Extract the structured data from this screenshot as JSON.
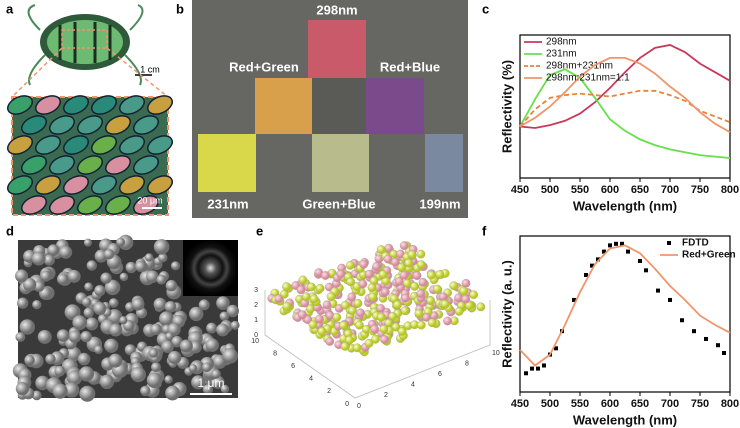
{
  "panel_labels": [
    "a",
    "b",
    "c",
    "d",
    "e",
    "f"
  ],
  "panel_a": {
    "scale_top": "1 cm",
    "scale_bottom": "20 μm"
  },
  "panel_b": {
    "labels": [
      "298nm",
      "Red+Green",
      "Red+Blue",
      "231nm",
      "Green+Blue",
      "199nm"
    ]
  },
  "panel_d": {
    "scale": "1 μm"
  },
  "panel_e": {
    "z_ticks": [
      0,
      1,
      2,
      3
    ],
    "y_ticks": [
      10,
      8,
      6,
      4,
      2,
      0
    ],
    "x_ticks": [
      0,
      2,
      4,
      6,
      8,
      10
    ]
  },
  "chart_data": [
    {
      "type": "line",
      "xlabel": "Wavelength (nm)",
      "ylabel": "Reflectivity (%)",
      "xlim": [
        450,
        800
      ],
      "xticks": [
        450,
        500,
        550,
        600,
        650,
        700,
        750,
        800
      ],
      "ylim": [
        0,
        100
      ],
      "series": [
        {
          "name": "298nm",
          "color": "#c8385a",
          "style": "line",
          "x": [
            450,
            475,
            500,
            525,
            550,
            575,
            600,
            625,
            650,
            675,
            700,
            725,
            750,
            775,
            800
          ],
          "values": [
            36,
            35,
            37,
            40,
            45,
            53,
            63,
            74,
            84,
            91,
            93,
            88,
            80,
            74,
            68
          ]
        },
        {
          "name": "231nm",
          "color": "#66e04a",
          "style": "line",
          "x": [
            450,
            475,
            500,
            525,
            550,
            575,
            600,
            625,
            650,
            675,
            700,
            725,
            750,
            775,
            800
          ],
          "values": [
            36,
            55,
            72,
            76,
            70,
            56,
            41,
            33,
            27,
            23,
            20,
            18,
            16,
            15,
            14
          ]
        },
        {
          "name": "298nm+231nm",
          "color": "#e8843a",
          "style": "dashed",
          "x": [
            450,
            475,
            500,
            525,
            550,
            575,
            600,
            625,
            650,
            675,
            700,
            725,
            750,
            775,
            800
          ],
          "values": [
            36,
            48,
            56,
            58,
            59,
            58,
            57,
            59,
            61,
            61,
            58,
            54,
            47,
            43,
            39
          ]
        },
        {
          "name": "298nm:231nm=1:1",
          "color": "#f0956a",
          "style": "line",
          "x": [
            450,
            475,
            500,
            525,
            550,
            575,
            600,
            625,
            650,
            675,
            700,
            725,
            750,
            775,
            800
          ],
          "values": [
            36,
            42,
            50,
            60,
            71,
            79,
            84,
            84,
            80,
            73,
            64,
            56,
            46,
            38,
            32
          ]
        }
      ]
    },
    {
      "type": "line",
      "xlabel": "Wavelength (nm)",
      "ylabel": "Reflectivity (a. u.)",
      "xlim": [
        450,
        800
      ],
      "xticks": [
        450,
        500,
        550,
        600,
        650,
        700,
        750,
        800
      ],
      "ylim": [
        0,
        100
      ],
      "series": [
        {
          "name": "FDTD",
          "color": "#000000",
          "style": "markers",
          "x": [
            460,
            470,
            480,
            490,
            500,
            510,
            520,
            540,
            560,
            570,
            580,
            590,
            600,
            610,
            620,
            630,
            650,
            660,
            680,
            700,
            720,
            740,
            760,
            780,
            790
          ],
          "values": [
            12,
            15,
            15,
            17,
            24,
            28,
            39,
            59,
            75,
            81,
            85,
            90,
            94,
            95,
            95,
            90,
            84,
            78,
            65,
            59,
            46,
            39,
            34,
            30,
            25
          ]
        },
        {
          "name": "Red+Green",
          "color": "#f0956a",
          "style": "line",
          "x": [
            450,
            475,
            500,
            525,
            550,
            575,
            600,
            625,
            650,
            675,
            700,
            725,
            750,
            775,
            800
          ],
          "values": [
            27,
            17,
            24,
            43,
            64,
            82,
            92,
            94,
            89,
            79,
            68,
            59,
            49,
            43,
            38
          ]
        }
      ]
    }
  ]
}
